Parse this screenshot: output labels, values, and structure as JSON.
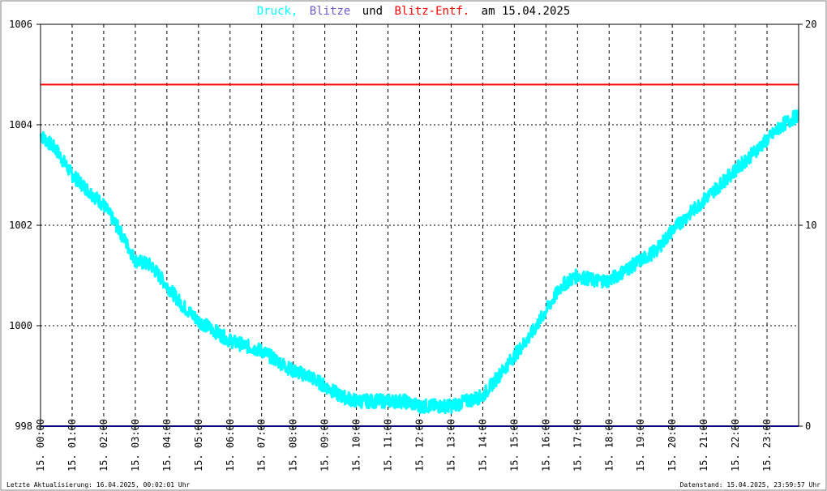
{
  "title": {
    "part1": "Druck,",
    "part2": "Blitze",
    "part3": "und",
    "part4": "Blitz-Entf.",
    "part5": "am 15.04.2025"
  },
  "colors": {
    "pressure": "#00ffff",
    "lightning": "#6a5acd",
    "distance": "#ff0000",
    "axis": "#000000",
    "baseline": "#000080"
  },
  "footer": {
    "left": "Letzte Aktualisierung: 16.04.2025, 00:02:01 Uhr",
    "right": "Datenstand: 15.04.2025, 23:59:57 Uhr"
  },
  "chart_data": {
    "type": "line",
    "grid": true,
    "y_left": {
      "label": "",
      "range": [
        998,
        1006
      ],
      "ticks": [
        "998",
        "1000",
        "1002",
        "1004",
        "1006"
      ]
    },
    "y_right": {
      "label": "",
      "range": [
        0,
        20
      ],
      "ticks": [
        "0",
        "10",
        "20"
      ]
    },
    "x": {
      "range": [
        0,
        24
      ],
      "ticks": [
        "15. 00:00",
        "15. 01:00",
        "15. 02:00",
        "15. 03:00",
        "15. 04:00",
        "15. 05:00",
        "15. 06:00",
        "15. 07:00",
        "15. 08:00",
        "15. 09:00",
        "15. 10:00",
        "15. 11:00",
        "15. 12:00",
        "15. 13:00",
        "15. 14:00",
        "15. 15:00",
        "15. 16:00",
        "15. 17:00",
        "15. 18:00",
        "15. 19:00",
        "15. 20:00",
        "15. 21:00",
        "15. 22:00",
        "15. 23:00"
      ]
    },
    "series": [
      {
        "name": "Druck",
        "axis": "left",
        "x": [
          0,
          0.5,
          1,
          1.5,
          2,
          2.5,
          3,
          3.5,
          4,
          4.5,
          5,
          5.5,
          6,
          6.5,
          7,
          7.5,
          8,
          8.5,
          9,
          9.5,
          10,
          10.5,
          11,
          11.5,
          12,
          12.5,
          13,
          13.5,
          14,
          14.5,
          15,
          15.5,
          16,
          16.5,
          17,
          17.5,
          18,
          18.5,
          19,
          19.5,
          20,
          20.5,
          21,
          21.5,
          22,
          22.5,
          23,
          23.5,
          24
        ],
        "y": [
          1003.8,
          1003.5,
          1003.0,
          1002.7,
          1002.4,
          1001.9,
          1001.3,
          1001.2,
          1000.8,
          1000.4,
          1000.1,
          999.9,
          999.7,
          999.6,
          999.5,
          999.3,
          999.1,
          999.0,
          998.8,
          998.6,
          998.5,
          998.5,
          998.5,
          998.5,
          998.4,
          998.4,
          998.4,
          998.5,
          998.6,
          999.0,
          999.4,
          999.8,
          1000.3,
          1000.8,
          1001.0,
          1000.9,
          1000.9,
          1001.1,
          1001.3,
          1001.5,
          1001.9,
          1002.2,
          1002.5,
          1002.8,
          1003.1,
          1003.4,
          1003.7,
          1004.0,
          1004.2
        ]
      },
      {
        "name": "Blitze",
        "axis": "right",
        "x": [
          0,
          24
        ],
        "y": [
          0,
          0
        ]
      },
      {
        "name": "Blitz-Entf.",
        "axis": "right",
        "x": [
          0,
          24
        ],
        "y": [
          17,
          17
        ]
      }
    ]
  }
}
